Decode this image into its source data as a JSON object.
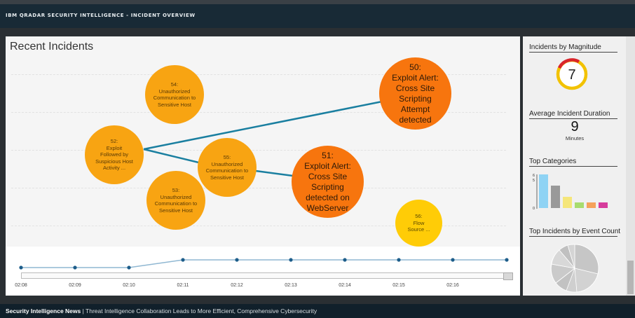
{
  "header": {
    "title": "IBM QRADAR SECURITY INTELLIGENCE - INCIDENT OVERVIEW"
  },
  "main": {
    "title": "Recent Incidents",
    "incidents": [
      {
        "id": "54",
        "text": "54:\nUnauthorized\nCommunication to\nSensitive Host",
        "size": "small"
      },
      {
        "id": "52",
        "text": "52:\nExploit\nFollowed by\nSuspicious Host\nActivity ...",
        "size": "small"
      },
      {
        "id": "55",
        "text": "55:\nUnauthorized\nCommunication to\nSensitive Host",
        "size": "small"
      },
      {
        "id": "53",
        "text": "53:\nUnauthorized\nCommunication to\nSensitive Host",
        "size": "small"
      },
      {
        "id": "50",
        "text": "50:\nExploit Alert:\nCross Site\nScripting\nAttempt\ndetected",
        "size": "large"
      },
      {
        "id": "51",
        "text": "51:\nExploit Alert:\nCross Site\nScripting\ndetected on\nWebServer",
        "size": "large"
      },
      {
        "id": "56",
        "text": "56:\nFlow\nSource ...",
        "size": "small"
      }
    ],
    "colors": {
      "small": "#f8a412",
      "large": "#f7750e",
      "flow": "#ffcc07",
      "link": "#1a7fa0"
    }
  },
  "timeline": {
    "ticks": [
      "02:08",
      "02:09",
      "02:10",
      "02:11",
      "02:12",
      "02:13",
      "02:14",
      "02:15",
      "02:16"
    ]
  },
  "sidebar": {
    "magnitude": {
      "title": "Incidents by Magnitude",
      "value": "7"
    },
    "duration": {
      "title": "Average Incident Duration",
      "value": "9",
      "unit": "Minutes"
    },
    "categories": {
      "title": "Top Categories",
      "y_ticks": [
        "6",
        "5",
        "0"
      ],
      "values": [
        6,
        4,
        2,
        1,
        1,
        1
      ],
      "colors": [
        "#8fd3f4",
        "#999999",
        "#f5e67a",
        "#a8dc6e",
        "#f5a25a",
        "#d63d9c"
      ]
    },
    "event_count": {
      "title": "Top Incidents by Event Count"
    }
  },
  "footer": {
    "news_label": "Security Intelligence News",
    "separator": "|",
    "headline": "Threat Intelligence Collaboration Leads to More Efficient, Comprehensive Cybersecurity"
  }
}
